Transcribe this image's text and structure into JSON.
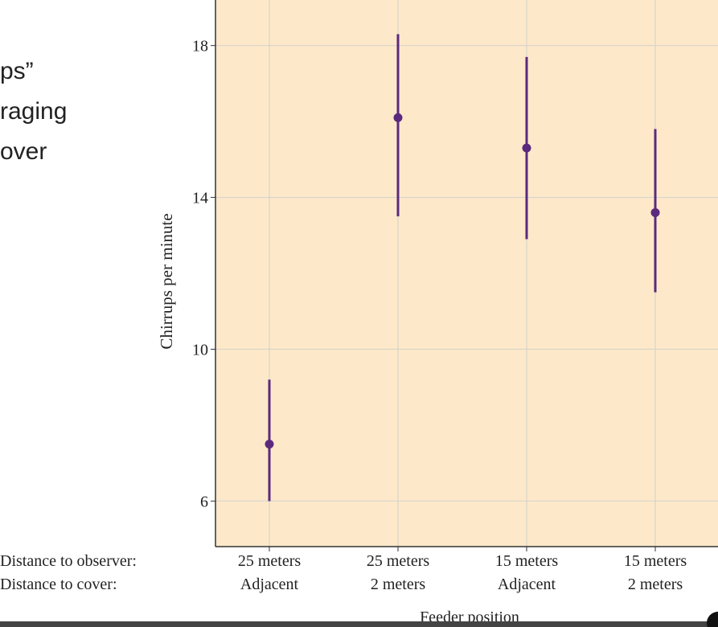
{
  "slide_text": [
    "ps”",
    "raging",
    "over"
  ],
  "chart_data": {
    "type": "errorbar",
    "y_label": "Chirrups per minute",
    "x_label": "Feeder position",
    "row_labels": [
      "Distance to observer:",
      "Distance to cover:"
    ],
    "categories": [
      [
        "25 meters",
        "Adjacent"
      ],
      [
        "25 meters",
        "2 meters"
      ],
      [
        "15 meters",
        "Adjacent"
      ],
      [
        "15 meters",
        "2 meters"
      ]
    ],
    "values": [
      7.5,
      16.1,
      15.3,
      13.6
    ],
    "lower": [
      6.0,
      13.5,
      12.9,
      11.5
    ],
    "upper": [
      9.2,
      18.3,
      17.7,
      15.8
    ],
    "color": "#5b2a7e",
    "ylim": [
      4.8,
      19.2
    ],
    "yticks": [
      6,
      10,
      14,
      18
    ],
    "grid": true
  }
}
